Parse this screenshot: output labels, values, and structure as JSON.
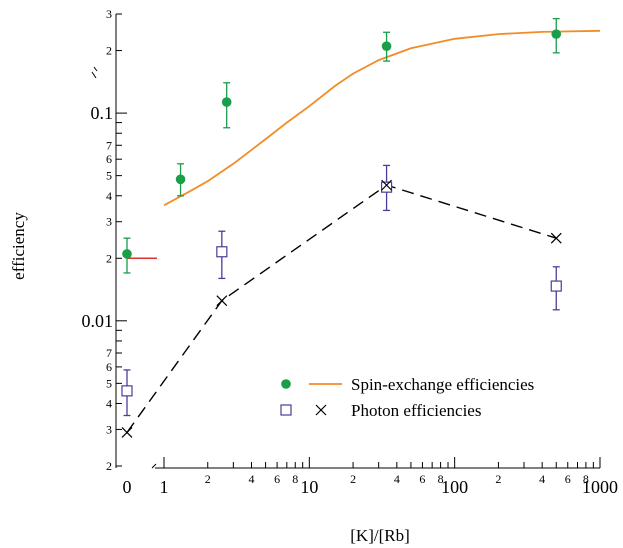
{
  "chart_data": {
    "type": "scatter",
    "xlabel": "[K]/[Rb]",
    "ylabel": "efficiency",
    "xscale": "log",
    "yscale": "log",
    "xlim": [
      1,
      1000
    ],
    "ylim": [
      0.002,
      0.3
    ],
    "grid": false,
    "legend_position": "lower-right",
    "x_zero_label": "0",
    "x_major_ticks": [
      {
        "v": 1,
        "t": "1"
      },
      {
        "v": 10,
        "t": "10"
      },
      {
        "v": 100,
        "t": "100"
      },
      {
        "v": 1000,
        "t": "1000"
      }
    ],
    "x_minor_ticks": [
      {
        "v": 2,
        "t": "2"
      },
      {
        "v": 4,
        "t": "4"
      },
      {
        "v": 6,
        "t": "6"
      },
      {
        "v": 8,
        "t": "8"
      },
      {
        "v": 20,
        "t": "2"
      },
      {
        "v": 40,
        "t": "4"
      },
      {
        "v": 60,
        "t": "6"
      },
      {
        "v": 80,
        "t": "8"
      },
      {
        "v": 200,
        "t": "2"
      },
      {
        "v": 400,
        "t": "4"
      },
      {
        "v": 600,
        "t": "6"
      },
      {
        "v": 800,
        "t": "8"
      }
    ],
    "y_major_ticks": [
      {
        "v": 0.01,
        "t": "0.01"
      },
      {
        "v": 0.1,
        "t": "0.1"
      }
    ],
    "y_minor_ticks": [
      {
        "v": 0.002,
        "t": "2"
      },
      {
        "v": 0.003,
        "t": "3"
      },
      {
        "v": 0.004,
        "t": "4"
      },
      {
        "v": 0.005,
        "t": "5"
      },
      {
        "v": 0.006,
        "t": "6"
      },
      {
        "v": 0.007,
        "t": "7"
      },
      {
        "v": 0.02,
        "t": "2"
      },
      {
        "v": 0.03,
        "t": "3"
      },
      {
        "v": 0.04,
        "t": "4"
      },
      {
        "v": 0.05,
        "t": "5"
      },
      {
        "v": 0.06,
        "t": "6"
      },
      {
        "v": 0.07,
        "t": "7"
      },
      {
        "v": 0.2,
        "t": "2"
      },
      {
        "v": 0.3,
        "t": "3"
      }
    ],
    "series": [
      {
        "name": "Spin-exchange efficiencies",
        "marker": "filled-circle",
        "color": "#1a9e4a",
        "errcolor": "#1a9e4a",
        "points": [
          {
            "x": 0,
            "y": 0.021,
            "ylo": 0.017,
            "yhi": 0.025
          },
          {
            "x": 1.3,
            "y": 0.048,
            "ylo": 0.04,
            "yhi": 0.057
          },
          {
            "x": 2.7,
            "y": 0.113,
            "ylo": 0.085,
            "yhi": 0.14
          },
          {
            "x": 34,
            "y": 0.21,
            "ylo": 0.178,
            "yhi": 0.245
          },
          {
            "x": 500,
            "y": 0.24,
            "ylo": 0.195,
            "yhi": 0.285
          }
        ]
      },
      {
        "name": "Photon efficiencies",
        "marker": "open-square",
        "color": "#4b3d9a",
        "errcolor": "#4b3d9a",
        "points": [
          {
            "x": 0,
            "y": 0.0046,
            "ylo": 0.0035,
            "yhi": 0.0058
          },
          {
            "x": 2.5,
            "y": 0.0215,
            "ylo": 0.016,
            "yhi": 0.027
          },
          {
            "x": 34,
            "y": 0.044,
            "ylo": 0.034,
            "yhi": 0.056
          },
          {
            "x": 500,
            "y": 0.0147,
            "ylo": 0.0113,
            "yhi": 0.0182
          }
        ]
      },
      {
        "name": "Photon efficiencies",
        "marker": "cross",
        "color": "#000000",
        "line": "dashed",
        "points": [
          {
            "x": 0,
            "y": 0.0029
          },
          {
            "x": 2.5,
            "y": 0.0125
          },
          {
            "x": 34,
            "y": 0.045
          },
          {
            "x": 500,
            "y": 0.025
          }
        ]
      }
    ],
    "fit_curve": {
      "color": "#f28c28",
      "points": [
        [
          1,
          0.036
        ],
        [
          1.5,
          0.042
        ],
        [
          2,
          0.047
        ],
        [
          3,
          0.057
        ],
        [
          5,
          0.075
        ],
        [
          7,
          0.09
        ],
        [
          10,
          0.108
        ],
        [
          15,
          0.135
        ],
        [
          20,
          0.155
        ],
        [
          30,
          0.18
        ],
        [
          50,
          0.205
        ],
        [
          100,
          0.228
        ],
        [
          200,
          0.24
        ],
        [
          400,
          0.246
        ],
        [
          1000,
          0.249
        ]
      ]
    },
    "zero_marker_line": {
      "color": "#e03030",
      "y": 0.02
    },
    "legend": [
      {
        "symbol": "filled-circle",
        "symbol_color": "#1a9e4a",
        "line_color": "#f28c28",
        "label": "Spin-exchange efficiencies"
      },
      {
        "symbol": "open-square",
        "symbol_color": "#4b3d9a",
        "line_symbol": "cross",
        "line_color": "#000000",
        "label": "Photon efficiencies"
      }
    ]
  }
}
